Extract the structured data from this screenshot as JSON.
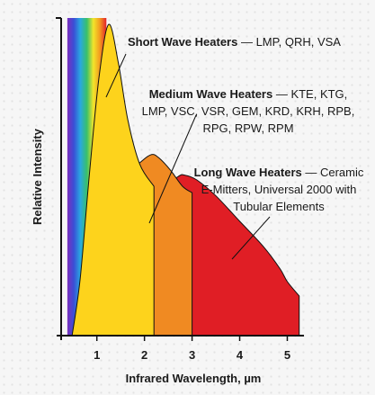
{
  "chart_data": {
    "type": "area",
    "xlabel": "Infrared Wavelength, µm",
    "ylabel": "Relative Intensity",
    "xlim": [
      0.25,
      5.35
    ],
    "ylim": [
      0,
      1.0
    ],
    "x_ticks": [
      1,
      2,
      3,
      4,
      5
    ],
    "grid": false,
    "legend": "none",
    "visible_spectrum_band": {
      "x_range": [
        0.38,
        1.2
      ],
      "colors": [
        "#7b2fbf",
        "#3a4fd6",
        "#2aa8e0",
        "#38c06a",
        "#f2e52a",
        "#f39a1f",
        "#e3202a"
      ]
    },
    "series": [
      {
        "color": "#e01e25",
        "x": [
          0.67,
          0.9,
          1.3,
          1.8,
          2.3,
          2.7,
          2.85,
          3.1,
          3.5,
          4.0,
          4.5,
          4.85,
          5.0,
          5.25
        ],
        "y": [
          0.0,
          0.04,
          0.14,
          0.3,
          0.45,
          0.5,
          0.505,
          0.49,
          0.44,
          0.36,
          0.28,
          0.21,
          0.17,
          0.125
        ]
      },
      {
        "color": "#f08a22",
        "x": [
          0.57,
          0.8,
          1.1,
          1.4,
          1.7,
          1.95,
          2.15,
          2.3,
          2.55,
          2.8,
          3.0
        ],
        "y": [
          0.0,
          0.06,
          0.22,
          0.4,
          0.51,
          0.55,
          0.57,
          0.56,
          0.52,
          0.47,
          0.45
        ]
      },
      {
        "color": "#fdd31c",
        "x": [
          0.48,
          0.65,
          0.85,
          1.05,
          1.25,
          1.45,
          1.65,
          1.9,
          2.2
        ],
        "y": [
          0.0,
          0.18,
          0.52,
          0.82,
          0.98,
          0.86,
          0.68,
          0.54,
          0.47
        ]
      }
    ],
    "annotations": [
      {
        "bold": "Short Wave Heaters",
        "text": " — LMP, QRH, VSA"
      },
      {
        "bold": "Medium Wave Heaters",
        "text": " — KTE, KTG,",
        "lines": [
          "LMP, VSC, VSR, GEM, KRD, KRH, RPB,",
          "RPG, RPW, RPM"
        ]
      },
      {
        "bold": "Long Wave Heaters",
        "text": " — Ceramic",
        "lines": [
          "E-Mitters, Universal 2000 with",
          "Tubular Elements"
        ]
      }
    ]
  }
}
